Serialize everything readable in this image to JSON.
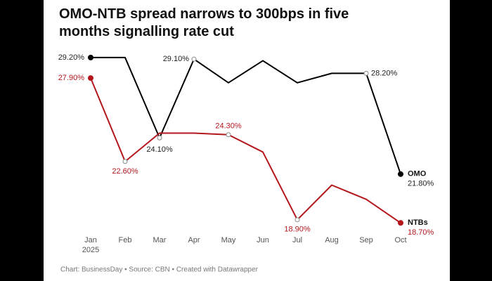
{
  "chart_data": {
    "type": "line",
    "title": "OMO-NTB spread narrows to 300bps in five months signalling rate cut",
    "categories": [
      "Jan",
      "Feb",
      "Mar",
      "Apr",
      "May",
      "Jun",
      "Jul",
      "Aug",
      "Sep",
      "Oct"
    ],
    "year_label": "2025",
    "ylim": [
      18,
      30
    ],
    "series": [
      {
        "name": "OMO",
        "color": "#000000",
        "values": [
          29.2,
          29.2,
          24.1,
          29.1,
          27.6,
          29.0,
          27.6,
          28.2,
          28.2,
          21.8
        ],
        "value_labels": [
          "29.20%",
          null,
          "24.10%",
          "29.10%",
          null,
          null,
          null,
          null,
          "28.20%",
          "21.80%"
        ]
      },
      {
        "name": "NTBs",
        "color": "#b3171c",
        "values": [
          27.9,
          22.6,
          24.4,
          24.4,
          24.3,
          23.2,
          18.9,
          21.1,
          20.2,
          18.7
        ],
        "value_labels": [
          "27.90%",
          "22.60%",
          null,
          null,
          "24.30%",
          null,
          "18.90%",
          null,
          null,
          "18.70%"
        ]
      }
    ],
    "footer": "Chart: BusinessDay • Source: CBN • Created with Datawrapper"
  }
}
